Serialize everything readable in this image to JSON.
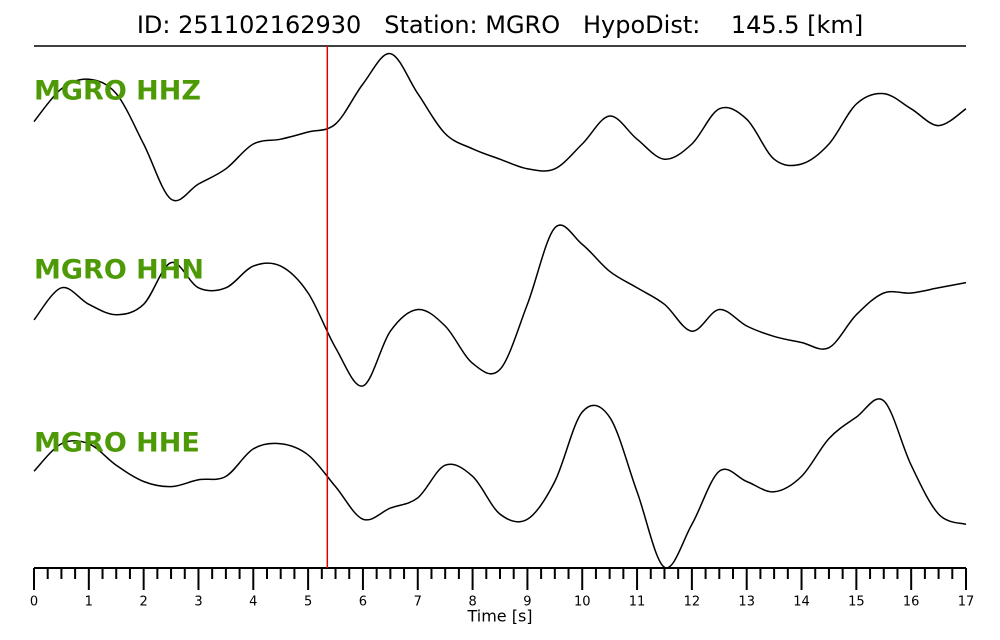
{
  "chart_data": {
    "type": "line",
    "title": "ID: 251102162930   Station: MGRO   HypoDist:    145.5 [km]",
    "xlabel": "Time [s]",
    "xlim": [
      0,
      17
    ],
    "xticks": [
      0,
      1,
      2,
      3,
      4,
      5,
      6,
      7,
      8,
      9,
      10,
      11,
      12,
      13,
      14,
      15,
      16,
      17
    ],
    "xminorticks": [
      0.25,
      0.5,
      0.75,
      1.25,
      1.5,
      1.75,
      2.25,
      2.5,
      2.75,
      3.25,
      3.5,
      3.75,
      4.25,
      4.5,
      4.75,
      5.25,
      5.5,
      5.75,
      6.25,
      6.5,
      6.75,
      7.25,
      7.5,
      7.75,
      8.25,
      8.5,
      8.75,
      9.25,
      9.5,
      9.75,
      10.25,
      10.5,
      10.75,
      11.25,
      11.5,
      11.75,
      12.25,
      12.5,
      12.75,
      13.25,
      13.5,
      13.75,
      14.25,
      14.5,
      14.75,
      15.25,
      15.5,
      15.75,
      16.25,
      16.5,
      16.75
    ],
    "ylim": [
      -1,
      1
    ],
    "pick": 5.35,
    "pick_color": "#e00000",
    "label_color": "#4e9a06",
    "x": [
      0,
      0.5,
      1,
      1.5,
      2,
      2.5,
      3,
      3.5,
      4,
      4.5,
      5,
      5.5,
      6,
      6.5,
      7,
      7.5,
      8,
      8.5,
      9,
      9.5,
      10,
      10.5,
      11,
      11.5,
      12,
      12.5,
      13,
      13.5,
      14,
      14.5,
      15,
      15.5,
      16,
      16.5,
      17
    ],
    "series": [
      {
        "name": "MGRO HHZ",
        "color": "#000000",
        "values": [
          0.03,
          0.44,
          0.56,
          0.38,
          -0.25,
          -0.94,
          -0.75,
          -0.56,
          -0.25,
          -0.19,
          -0.1,
          0,
          0.5,
          0.88,
          0.38,
          -0.12,
          -0.31,
          -0.44,
          -0.56,
          -0.56,
          -0.25,
          0.1,
          -0.19,
          -0.44,
          -0.25,
          0.19,
          0.06,
          -0.44,
          -0.5,
          -0.25,
          0.25,
          0.38,
          0.19,
          -0.02,
          0.19
        ]
      },
      {
        "name": "MGRO HHN",
        "color": "#000000",
        "values": [
          -0.12,
          0.25,
          0.06,
          -0.06,
          0.06,
          0.54,
          0.25,
          0.25,
          0.5,
          0.5,
          0.19,
          -0.44,
          -0.88,
          -0.25,
          0,
          -0.19,
          -0.62,
          -0.69,
          0.06,
          0.94,
          0.75,
          0.44,
          0.25,
          0.06,
          -0.25,
          0,
          -0.19,
          -0.31,
          -0.38,
          -0.44,
          -0.06,
          0.19,
          0.19,
          0.25,
          0.31
        ]
      },
      {
        "name": "MGRO HHE",
        "color": "#000000",
        "values": [
          0.12,
          0.44,
          0.44,
          0.19,
          0,
          -0.06,
          0.02,
          0.06,
          0.38,
          0.44,
          0.31,
          -0.06,
          -0.44,
          -0.31,
          -0.19,
          0.19,
          0.06,
          -0.38,
          -0.44,
          0,
          0.81,
          0.75,
          -0.12,
          -1,
          -0.5,
          0.12,
          0,
          -0.12,
          0.06,
          0.5,
          0.75,
          0.94,
          0.19,
          -0.38,
          -0.5
        ]
      }
    ]
  }
}
